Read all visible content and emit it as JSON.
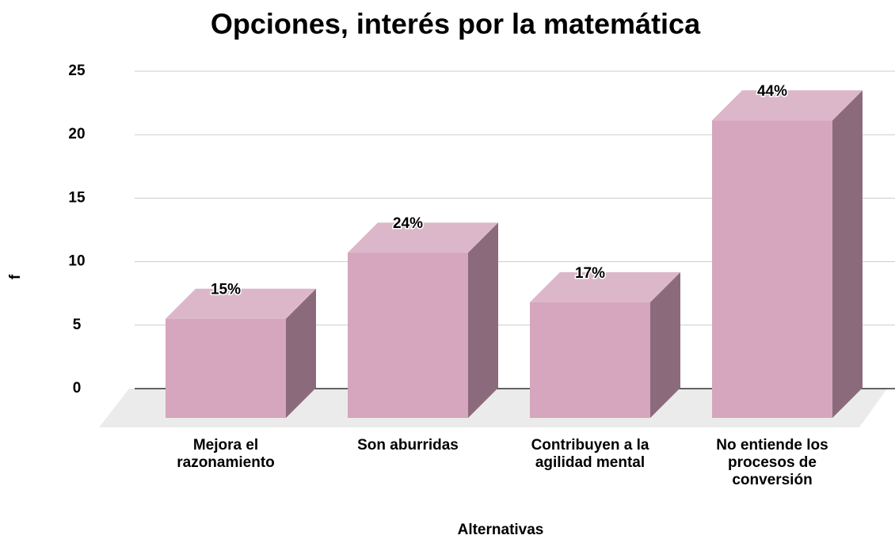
{
  "chart_data": {
    "type": "bar3d",
    "title": "Opciones, interés por la matemática",
    "x_label": "Alternativas",
    "y_label": "f",
    "categories": [
      "Mejora el razonamiento",
      "Son aburridas",
      "Contribuyen a la agilidad mental",
      "No entiende los procesos de conversión"
    ],
    "values": [
      6,
      10,
      7,
      18
    ],
    "value_labels": [
      "15%",
      "24%",
      "17%",
      "44%"
    ],
    "color": "#d5a6bd",
    "ylim": [
      0,
      25
    ],
    "yticks": [
      0,
      5,
      10,
      15,
      20,
      25
    ],
    "grid": true
  }
}
